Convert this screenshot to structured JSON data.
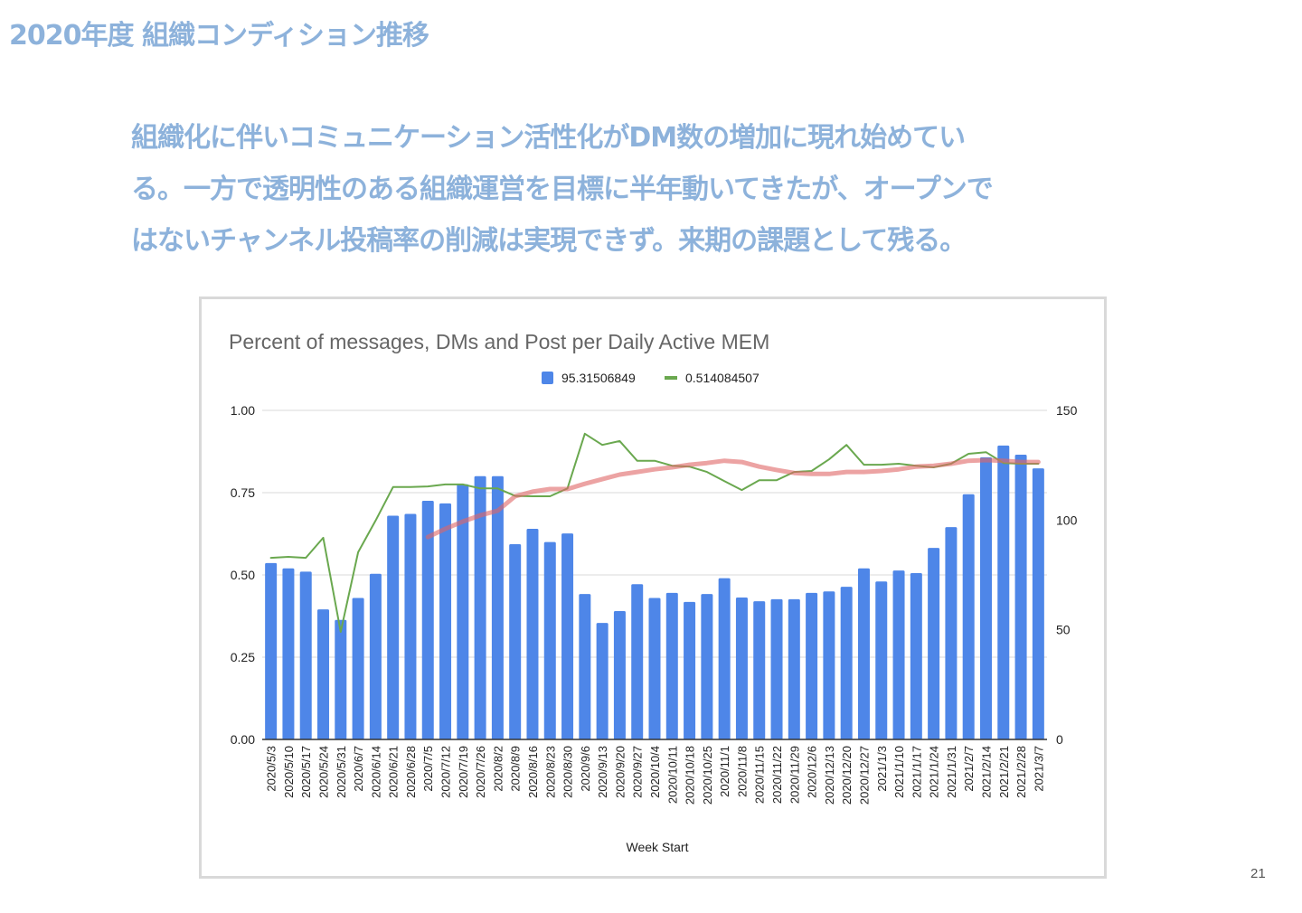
{
  "slide": {
    "title": "2020年度 組織コンディション推移",
    "paragraph_lines": [
      "組織化に伴いコミュニケーション活性化がDM数の増加に現れ始めてい",
      "る。一方で透明性のある組織運営を目標に半年動いてきたが、オープンで",
      "はないチャンネル投稿率の削減は実現できず。来期の課題として残る。"
    ],
    "page_number": "21"
  },
  "chart_data": {
    "type": "bar",
    "title": "Percent of messages, DMs and Post per Daily Active MEM",
    "xlabel": "Week Start",
    "ylabel": "",
    "legend_position": "top",
    "grid": true,
    "left_axis": {
      "range": [
        0,
        1
      ],
      "ticks": [
        "0.00",
        "0.25",
        "0.50",
        "0.75",
        "1.00"
      ],
      "tick_values": [
        0,
        0.25,
        0.5,
        0.75,
        1
      ]
    },
    "right_axis": {
      "range": [
        0,
        150
      ],
      "ticks": [
        "0",
        "50",
        "100",
        "150"
      ],
      "tick_values": [
        0,
        50,
        100,
        150
      ]
    },
    "categories": [
      "2020/5/3",
      "2020/5/10",
      "2020/5/17",
      "2020/5/24",
      "2020/5/31",
      "2020/6/7",
      "2020/6/14",
      "2020/6/21",
      "2020/6/28",
      "2020/7/5",
      "2020/7/12",
      "2020/7/19",
      "2020/7/26",
      "2020/8/2",
      "2020/8/9",
      "2020/8/16",
      "2020/8/23",
      "2020/8/30",
      "2020/9/6",
      "2020/9/13",
      "2020/9/20",
      "2020/9/27",
      "2020/10/4",
      "2020/10/11",
      "2020/10/18",
      "2020/10/25",
      "2020/11/1",
      "2020/11/8",
      "2020/11/15",
      "2020/11/22",
      "2020/11/29",
      "2020/12/6",
      "2020/12/13",
      "2020/12/20",
      "2020/12/27",
      "2021/1/3",
      "2021/1/10",
      "2021/1/17",
      "2021/1/24",
      "2021/1/31",
      "2021/2/7",
      "2021/2/14",
      "2021/2/21",
      "2021/2/28",
      "2021/3/7"
    ],
    "series": [
      {
        "name": "95.31506849",
        "type": "bar",
        "axis": "right",
        "color": "#4e86e8",
        "values": [
          80.4,
          78,
          76.5,
          59.3,
          54.5,
          64.5,
          75.5,
          102,
          102.8,
          108.8,
          107.6,
          116.3,
          120,
          120,
          89,
          96,
          90,
          93.9,
          66.3,
          53.1,
          58.5,
          70.8,
          64.5,
          66.8,
          62.7,
          66.3,
          73.5,
          64.7,
          63,
          63.9,
          63.9,
          66.8,
          67.5,
          69.6,
          78,
          72,
          77,
          75.8,
          87.3,
          96.8,
          111.8,
          128.6,
          134,
          129.8,
          123.6
        ]
      },
      {
        "name": "0.514084507",
        "type": "line",
        "axis": "left",
        "color": "#6aa84f",
        "values": [
          0.552,
          0.555,
          0.552,
          0.613,
          0.327,
          0.569,
          0.665,
          0.767,
          0.767,
          0.769,
          0.775,
          0.775,
          0.763,
          0.763,
          0.74,
          0.739,
          0.739,
          0.763,
          0.929,
          0.895,
          0.907,
          0.847,
          0.847,
          0.832,
          0.829,
          0.813,
          0.785,
          0.758,
          0.788,
          0.788,
          0.813,
          0.816,
          0.851,
          0.895,
          0.835,
          0.835,
          0.838,
          0.832,
          0.827,
          0.838,
          0.868,
          0.873,
          0.84,
          0.838,
          0.838
        ]
      },
      {
        "name": "trendline",
        "type": "line",
        "axis": "left",
        "color": "#e06666",
        "in_legend": false,
        "values": [
          null,
          null,
          null,
          null,
          null,
          null,
          null,
          null,
          null,
          0.615,
          0.64,
          0.662,
          0.681,
          0.695,
          0.739,
          0.753,
          0.761,
          0.761,
          0.777,
          0.791,
          0.805,
          0.813,
          0.821,
          0.827,
          0.835,
          0.84,
          0.847,
          0.843,
          0.829,
          0.819,
          0.81,
          0.807,
          0.807,
          0.813,
          0.813,
          0.816,
          0.821,
          0.829,
          0.832,
          0.838,
          0.847,
          0.849,
          0.847,
          0.843,
          0.843
        ]
      }
    ]
  }
}
